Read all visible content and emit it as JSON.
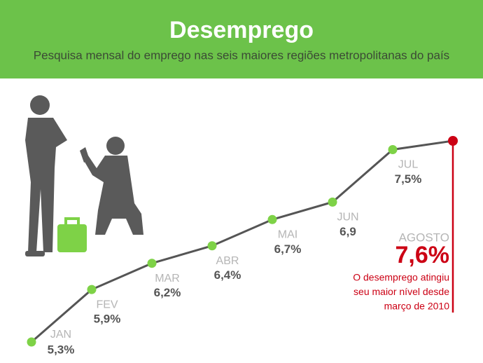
{
  "chart_data": {
    "type": "line",
    "title": "Desemprego",
    "subtitle": "Pesquisa mensal do emprego nas seis maiores regiões metropolitanas do país",
    "categories": [
      "JAN",
      "FEV",
      "MAR",
      "ABR",
      "MAI",
      "JUN",
      "JUL",
      "AGOSTO"
    ],
    "values": [
      5.3,
      5.9,
      6.2,
      6.4,
      6.7,
      6.9,
      7.5,
      7.6
    ],
    "value_labels": [
      "5,3%",
      "5,9%",
      "6,2%",
      "6,4%",
      "6,7%",
      "6,9",
      "7,5%",
      "7,6%"
    ],
    "color": "#555555",
    "marker_color": "#7ed247",
    "highlight_color": "#cc0014",
    "annotation": [
      "O desemprego atingiu",
      "seu maior nível desde",
      "março de 2010"
    ]
  }
}
